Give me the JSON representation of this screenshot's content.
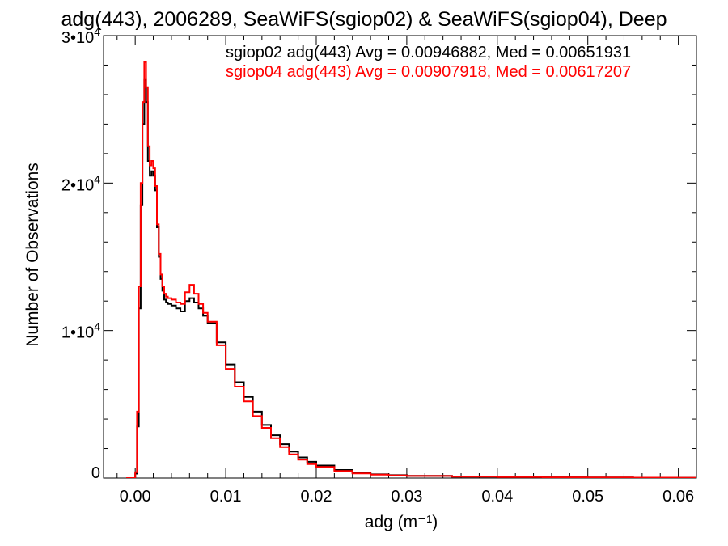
{
  "chart_data": {
    "type": "line",
    "title": "adg(443), 2006289, SeaWiFS(sgiop02) & SeaWiFS(sgiop04), Deep",
    "xlabel": "adg (m⁻¹)",
    "ylabel": "Number of Observations",
    "xlim": [
      -0.0035,
      0.062
    ],
    "ylim": [
      0,
      30000
    ],
    "x_ticks": [
      0.0,
      0.01,
      0.02,
      0.03,
      0.04,
      0.05,
      0.06
    ],
    "x_tick_labels": [
      "0.00",
      "0.01",
      "0.02",
      "0.03",
      "0.04",
      "0.05",
      "0.06"
    ],
    "y_ticks": [
      0,
      10000,
      20000,
      30000
    ],
    "y_tick_labels": [
      {
        "mantissa": "0",
        "sup": ""
      },
      {
        "mantissa": "1•10",
        "sup": "4"
      },
      {
        "mantissa": "2•10",
        "sup": "4"
      },
      {
        "mantissa": "3•10",
        "sup": "4"
      }
    ],
    "grid": false,
    "legend_position": "top-right",
    "series": [
      {
        "name": "sgiop02",
        "label": "sgiop02 adg(443) Avg = 0.00946882, Med = 0.00651931",
        "color": "#000000",
        "x": [
          -0.001,
          0.0,
          0.0002,
          0.0004,
          0.0006,
          0.0008,
          0.001,
          0.0012,
          0.0014,
          0.0016,
          0.0018,
          0.002,
          0.0022,
          0.0024,
          0.0026,
          0.0028,
          0.003,
          0.0032,
          0.0034,
          0.0036,
          0.0038,
          0.004,
          0.0045,
          0.005,
          0.0055,
          0.006,
          0.0065,
          0.007,
          0.0075,
          0.008,
          0.009,
          0.01,
          0.011,
          0.012,
          0.013,
          0.014,
          0.015,
          0.016,
          0.017,
          0.018,
          0.019,
          0.02,
          0.022,
          0.024,
          0.026,
          0.028,
          0.03,
          0.035,
          0.04,
          0.045,
          0.05,
          0.055,
          0.06,
          0.062
        ],
        "y": [
          0,
          300,
          3500,
          11500,
          18500,
          24000,
          27000,
          25500,
          21500,
          20500,
          20800,
          20500,
          19500,
          17000,
          15000,
          13500,
          12700,
          12100,
          11900,
          11800,
          11800,
          11700,
          11500,
          11300,
          12000,
          12200,
          11900,
          11500,
          11000,
          10500,
          9200,
          7700,
          6500,
          5500,
          4500,
          3600,
          2900,
          2300,
          1800,
          1400,
          1100,
          850,
          550,
          350,
          250,
          200,
          150,
          100,
          70,
          50,
          40,
          30,
          20,
          20
        ]
      },
      {
        "name": "sgiop04",
        "label": "sgiop04 adg(443) Avg = 0.00907918, Med = 0.00617207",
        "color": "#ff0000",
        "x": [
          -0.001,
          0.0,
          0.0002,
          0.0004,
          0.0006,
          0.0008,
          0.001,
          0.0012,
          0.0014,
          0.0016,
          0.0018,
          0.002,
          0.0022,
          0.0024,
          0.0026,
          0.0028,
          0.003,
          0.0032,
          0.0034,
          0.0036,
          0.0038,
          0.004,
          0.0045,
          0.005,
          0.0055,
          0.006,
          0.0065,
          0.007,
          0.0075,
          0.008,
          0.009,
          0.01,
          0.011,
          0.012,
          0.013,
          0.014,
          0.015,
          0.016,
          0.017,
          0.018,
          0.019,
          0.02,
          0.022,
          0.024,
          0.026,
          0.028,
          0.03,
          0.035,
          0.04,
          0.045,
          0.05,
          0.055,
          0.06,
          0.062
        ],
        "y": [
          0,
          400,
          4500,
          13000,
          20000,
          25500,
          28200,
          26500,
          22500,
          21200,
          21500,
          21000,
          19800,
          17200,
          15200,
          13800,
          13000,
          12500,
          12300,
          12200,
          12200,
          12100,
          11900,
          11800,
          12600,
          13100,
          12500,
          11800,
          11200,
          10600,
          9000,
          7400,
          6200,
          5200,
          4200,
          3400,
          2700,
          2100,
          1600,
          1250,
          950,
          750,
          480,
          320,
          230,
          180,
          140,
          100,
          70,
          50,
          40,
          30,
          20,
          20
        ]
      }
    ]
  }
}
